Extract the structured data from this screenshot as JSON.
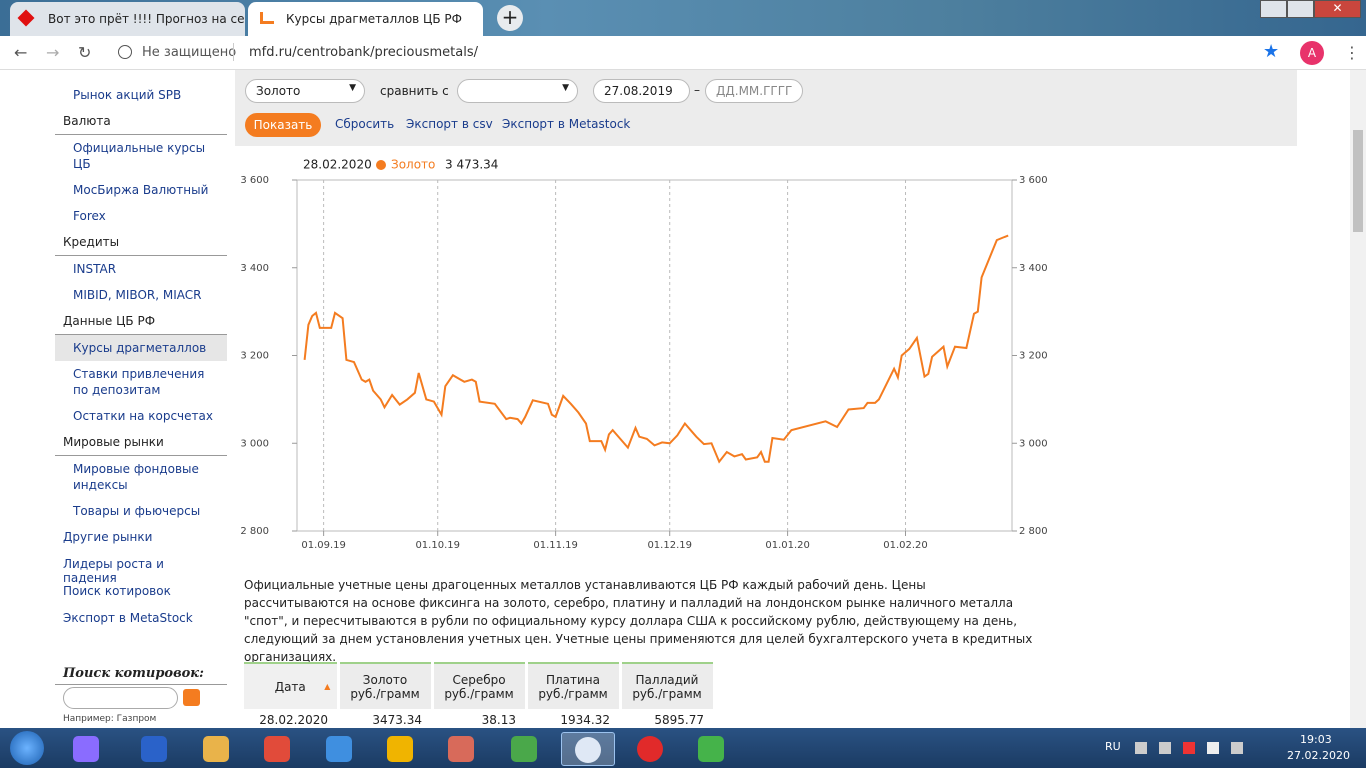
{
  "browser": {
    "tabs": [
      "Вот это прёт !!!! Прогноз на сез",
      "Курсы драгметаллов ЦБ РФ"
    ],
    "security": "Не защищено",
    "url": "mfd.ru/centrobank/preciousmetals/",
    "profile": "A"
  },
  "sidebar": {
    "groups": [
      {
        "items": [
          "Рынок акций SPB"
        ]
      },
      {
        "title": "Валюта",
        "items": [
          "Официальные курсы ЦБ",
          "МосБиржа Валютный",
          "Forex"
        ]
      },
      {
        "title": "Кредиты",
        "items": [
          "INSTAR",
          "MIBID, MIBOR, MIACR"
        ]
      },
      {
        "title": "Данные ЦБ РФ",
        "items": [
          "Курсы драгметаллов",
          "Ставки привлечения по депозитам",
          "Остатки на корсчетах"
        ]
      },
      {
        "title": "Мировые рынки",
        "items": [
          "Мировые фондовые индексы",
          "Товары и фьючерсы"
        ]
      }
    ],
    "links": [
      "Другие рынки",
      "Лидеры роста и падения",
      "Поиск котировок",
      "Экспорт в MetaStock"
    ],
    "search_title": "Поиск котировок:",
    "search_hint": "Например: Газпром"
  },
  "form": {
    "metal": "Золото",
    "compare_label": "сравнить с",
    "date_from": "27.08.2019",
    "dash": "–",
    "date_to_placeholder": "ДД.ММ.ГГГГ",
    "button": "Показать",
    "links": [
      "Сбросить",
      "Экспорт в csv",
      "Экспорт в Metastock"
    ]
  },
  "chart_data": {
    "type": "line",
    "readout": {
      "date": "28.02.2020",
      "label": "3 473.34"
    },
    "xlim": [
      "25.08.19",
      "29.02.20"
    ],
    "xticks": [
      "01.09.19",
      "01.10.19",
      "01.11.19",
      "01.12.19",
      "01.01.20",
      "01.02.20"
    ],
    "ylim": [
      2800,
      3600
    ],
    "yticks": [
      {
        "value": 2800,
        "label": "2 800"
      },
      {
        "value": 3000,
        "label": "3 000"
      },
      {
        "value": 3200,
        "label": "3 200"
      },
      {
        "value": 3400,
        "label": "3 400"
      },
      {
        "value": 3600,
        "label": "3 600"
      }
    ],
    "y2lim": [
      2800,
      3600
    ],
    "y2ticks": [
      {
        "value": 2800,
        "label": "2 800"
      },
      {
        "value": 3000,
        "label": "3 000"
      },
      {
        "value": 3200,
        "label": "3 200"
      },
      {
        "value": 3400,
        "label": "3 400"
      },
      {
        "value": 3600,
        "label": "3 600"
      }
    ],
    "grid": "x",
    "x": [
      "27.08.19",
      "28.08.19",
      "29.08.19",
      "30.08.19",
      "31.08.19",
      "03.09.19",
      "04.09.19",
      "06.09.19",
      "07.09.19",
      "09.09.19",
      "11.09.19",
      "12.09.19",
      "13.09.19",
      "14.09.19",
      "16.09.19",
      "17.09.19",
      "19.09.19",
      "21.09.19",
      "23.09.19",
      "25.09.19",
      "26.09.19",
      "28.09.19",
      "30.09.19",
      "02.10.19",
      "03.10.19",
      "05.10.19",
      "07.10.19",
      "08.10.19",
      "10.10.19",
      "11.10.19",
      "12.10.19",
      "16.10.19",
      "19.10.19",
      "20.10.19",
      "22.10.19",
      "23.10.19",
      "24.10.19",
      "26.10.19",
      "30.10.19",
      "31.10.19",
      "01.11.19",
      "03.11.19",
      "05.11.19",
      "07.11.19",
      "09.11.19",
      "10.11.19",
      "13.11.19",
      "14.11.19",
      "15.11.19",
      "16.11.19",
      "18.11.19",
      "20.11.19",
      "22.11.19",
      "23.11.19",
      "25.11.19",
      "27.11.19",
      "29.11.19",
      "01.12.19",
      "03.12.19",
      "05.12.19",
      "07.12.19",
      "08.12.19",
      "10.12.19",
      "12.12.19",
      "14.12.19",
      "16.12.19",
      "18.12.19",
      "20.12.19",
      "21.12.19",
      "24.12.19",
      "25.12.19",
      "26.12.19",
      "27.12.19",
      "28.12.19",
      "31.12.19",
      "02.01.20",
      "11.01.20",
      "14.01.20",
      "17.01.20",
      "21.01.20",
      "22.01.20",
      "24.01.20",
      "25.01.20",
      "29.01.20",
      "30.01.20",
      "31.01.20",
      "02.02.20",
      "04.02.20",
      "06.02.20",
      "07.02.20",
      "08.02.20",
      "11.02.20",
      "12.02.20",
      "14.02.20",
      "17.02.20",
      "19.02.20",
      "20.02.20",
      "21.02.20",
      "25.02.20",
      "27.02.20",
      "28.02.20"
    ],
    "series": [
      {
        "name": "Золото",
        "color": "#f47c20",
        "values": [
          3190,
          3270,
          3290,
          3297,
          3263,
          3263,
          3297,
          3285,
          3190,
          3185,
          3145,
          3140,
          3145,
          3120,
          3100,
          3082,
          3110,
          3088,
          3100,
          3115,
          3160,
          3100,
          3095,
          3065,
          3130,
          3155,
          3145,
          3140,
          3145,
          3140,
          3095,
          3090,
          3055,
          3058,
          3055,
          3045,
          3060,
          3098,
          3090,
          3065,
          3060,
          3108,
          3090,
          3070,
          3045,
          3005,
          3005,
          2985,
          3020,
          3030,
          3010,
          2990,
          3035,
          3015,
          3010,
          2995,
          3002,
          3000,
          3018,
          3045,
          3025,
          3015,
          2998,
          3000,
          2958,
          2980,
          2970,
          2975,
          2963,
          2968,
          2980,
          2958,
          2958,
          3012,
          3008,
          3030,
          3050,
          3037,
          3077,
          3080,
          3092,
          3092,
          3100,
          3170,
          3150,
          3200,
          3215,
          3240,
          3152,
          3158,
          3197,
          3220,
          3175,
          3220,
          3217,
          3295,
          3300,
          3378,
          3463,
          3470,
          3473.34
        ]
      }
    ]
  },
  "description": "Официальные учетные цены драгоценных металлов устанавливаются ЦБ РФ каждый рабочий день. Цены рассчитываются на основе фиксинга на золото, серебро, платину и палладий на лондонском рынке наличного металла \"спот\", и пересчитываются в рубли по официальному курсу доллара США к российскому рублю, действующему на день, следующий за днем установления учетных цен. Учетные цены применяются для целей бухгалтерского учета в кредитных организациях.",
  "table": {
    "header": [
      {
        "name": "Дата"
      },
      {
        "name": "Золото",
        "unit": "руб./грамм"
      },
      {
        "name": "Серебро",
        "unit": "руб./грамм"
      },
      {
        "name": "Платина",
        "unit": "руб./грамм"
      },
      {
        "name": "Палладий",
        "unit": "руб./грамм"
      }
    ],
    "rows": [
      [
        "28.02.2020",
        3473.34,
        38.13,
        1934.32,
        5895.77
      ]
    ]
  },
  "taskbar": {
    "language": "RU",
    "time": "19:03",
    "date": "27.02.2020"
  }
}
